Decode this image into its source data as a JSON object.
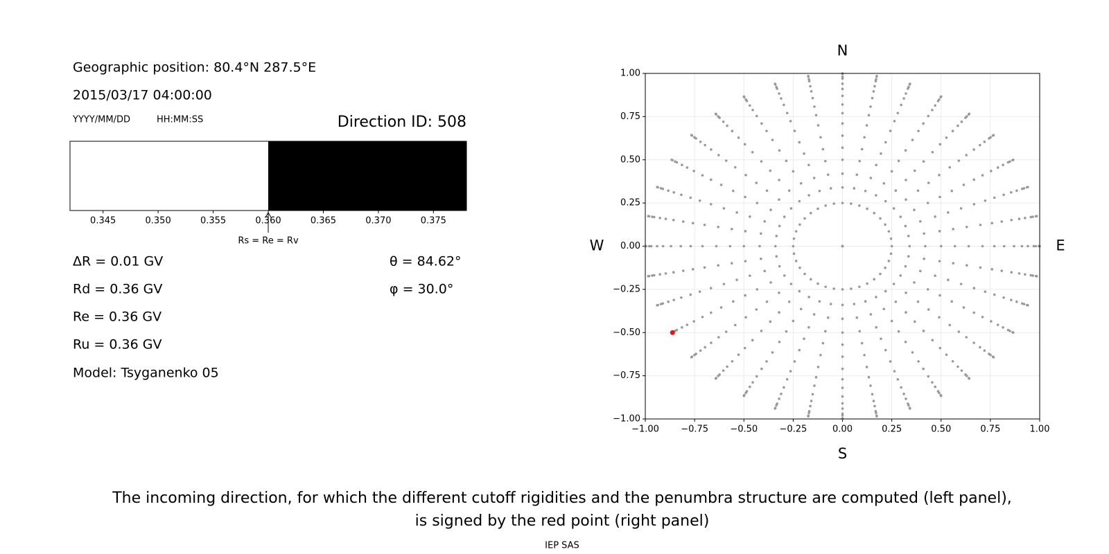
{
  "info": {
    "position": "Geographic position: 80.4°N 287.5°E",
    "datetime": "2015/03/17 04:00:00",
    "date_format": "YYYY/MM/DD",
    "time_format": "HH:MM:SS",
    "delta_r": "ΔR = 0.01 GV",
    "rd": "Rd = 0.36 GV",
    "re": "Re = 0.36 GV",
    "ru": "Ru = 0.36 GV",
    "model": "Model: Tsyganenko 05",
    "theta": "θ = 84.62°",
    "phi": "φ = 30.0°"
  },
  "caption": [
    "The incoming direction, for which the different cutoff rigidities and the penumbra structure are computed (left panel),",
    "is signed by the red point (right panel)"
  ],
  "footer": "IEP SAS",
  "chart_data": [
    {
      "type": "penumbra",
      "title": "Direction ID: 508",
      "segments": [
        {
          "start": 0.342,
          "end": 0.36,
          "color": "#ffffff"
        },
        {
          "start": 0.36,
          "end": 0.378,
          "color": "#000000"
        }
      ],
      "xlim": [
        0.342,
        0.378
      ],
      "xticks": [
        0.345,
        {
          "value": 0.35,
          "label": "0.350"
        },
        0.355,
        {
          "value": 0.36,
          "label": "0.360"
        },
        0.365,
        {
          "value": 0.37,
          "label": "0.370"
        },
        0.375
      ],
      "annotation": {
        "x": 0.36,
        "label": "Rs = Re = Rv"
      }
    },
    {
      "type": "scatter",
      "points": {
        "color": "#999999",
        "azimuth": [
          0,
          10,
          20,
          30,
          40,
          50,
          60,
          70,
          80,
          90,
          100,
          110,
          120,
          130,
          140,
          150,
          160,
          170,
          180,
          190,
          200,
          210,
          220,
          230,
          240,
          250,
          260,
          270,
          280,
          290,
          300,
          310,
          320,
          330,
          340,
          350
        ],
        "radius": [
          0,
          0.25,
          0.34,
          0.42,
          0.5,
          0.57,
          0.64,
          0.71,
          0.77,
          0.82,
          0.87,
          0.91,
          0.94,
          0.97,
          0.98,
          0.996,
          1.0
        ]
      },
      "highlight": {
        "color": "#e8141c",
        "x": -0.862,
        "y": -0.5
      },
      "xlim": [
        -1,
        1
      ],
      "ylim": [
        -1,
        1
      ],
      "xticks": [
        {
          "value": -1,
          "label": "−1.00"
        },
        {
          "value": -0.75,
          "label": "−0.75"
        },
        {
          "value": -0.5,
          "label": "−0.50"
        },
        {
          "value": -0.25,
          "label": "−0.25"
        },
        {
          "value": 0,
          "label": "0.00"
        },
        {
          "value": 0.25,
          "label": "0.25"
        },
        {
          "value": 0.5,
          "label": "0.50"
        },
        {
          "value": 0.75,
          "label": "0.75"
        },
        {
          "value": 1,
          "label": "1.00"
        }
      ],
      "yticks": [
        {
          "value": -1,
          "label": "−1.00"
        },
        {
          "value": -0.75,
          "label": "−0.75"
        },
        {
          "value": -0.5,
          "label": "−0.50"
        },
        {
          "value": -0.25,
          "label": "−0.25"
        },
        {
          "value": 0,
          "label": "0.00"
        },
        {
          "value": 0.25,
          "label": "0.25"
        },
        {
          "value": 0.5,
          "label": "0.50"
        },
        {
          "value": 0.75,
          "label": "0.75"
        },
        {
          "value": 1,
          "label": "1.00"
        }
      ],
      "grid": true,
      "compass": {
        "north": "N",
        "south": "S",
        "east": "E",
        "west": "W"
      }
    }
  ]
}
